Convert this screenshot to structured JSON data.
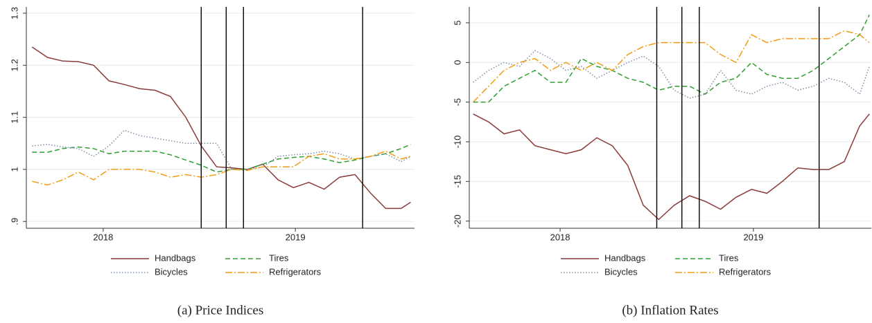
{
  "chart_data": [
    {
      "type": "line",
      "caption": "(a) Price Indices",
      "x": [
        2017.63,
        2017.71,
        2017.79,
        2017.87,
        2017.95,
        2018.03,
        2018.11,
        2018.19,
        2018.27,
        2018.35,
        2018.43,
        2018.51,
        2018.59,
        2018.67,
        2018.75,
        2018.83,
        2018.91,
        2018.99,
        2019.07,
        2019.15,
        2019.23,
        2019.31,
        2019.39,
        2019.47,
        2019.55,
        2019.6
      ],
      "xlim": [
        2017.6,
        2019.62
      ],
      "xticks": [
        2018,
        2019
      ],
      "ylim": [
        0.887,
        1.312
      ],
      "yticks": [
        {
          "value": 0.9,
          "label": ".9"
        },
        1,
        1.1,
        1.2,
        1.3
      ],
      "grid": true,
      "vlines": [
        2018.51,
        2018.64,
        2018.73,
        2019.35
      ],
      "series": [
        {
          "name": "Handbags",
          "color": "#8b3a3a",
          "style": "solid",
          "values": [
            1.235,
            1.215,
            1.208,
            1.207,
            1.2,
            1.17,
            1.163,
            1.155,
            1.152,
            1.14,
            1.1,
            1.045,
            1.005,
            1.003,
            1.0,
            1.01,
            0.98,
            0.965,
            0.975,
            0.962,
            0.985,
            0.99,
            0.955,
            0.925,
            0.925,
            0.937
          ]
        },
        {
          "name": "Tires",
          "color": "#2e9e2e",
          "style": "dashed",
          "values": [
            1.033,
            1.033,
            1.04,
            1.043,
            1.04,
            1.03,
            1.035,
            1.035,
            1.035,
            1.028,
            1.018,
            1.008,
            0.995,
            1.0,
            1.0,
            1.01,
            1.02,
            1.023,
            1.025,
            1.02,
            1.013,
            1.018,
            1.025,
            1.03,
            1.04,
            1.048
          ]
        },
        {
          "name": "Bicycles",
          "color": "#7a8ea6",
          "style": "dotted",
          "values": [
            1.045,
            1.048,
            1.043,
            1.04,
            1.025,
            1.045,
            1.075,
            1.065,
            1.06,
            1.055,
            1.05,
            1.05,
            1.05,
            1.0,
            1.0,
            1.005,
            1.025,
            1.028,
            1.03,
            1.035,
            1.03,
            1.02,
            1.025,
            1.03,
            1.015,
            1.025
          ]
        },
        {
          "name": "Refrigerators",
          "color": "#f39c12",
          "style": "dashdot",
          "values": [
            0.977,
            0.97,
            0.98,
            0.995,
            0.98,
            1.0,
            1.0,
            1.0,
            0.995,
            0.985,
            0.99,
            0.985,
            0.99,
            1.0,
            0.998,
            1.005,
            1.005,
            1.005,
            1.025,
            1.03,
            1.02,
            1.02,
            1.025,
            1.035,
            1.02,
            1.025
          ]
        }
      ]
    },
    {
      "type": "line",
      "caption": "(b) Inflation Rates",
      "x": [
        2017.55,
        2017.63,
        2017.71,
        2017.79,
        2017.87,
        2017.95,
        2018.03,
        2018.11,
        2018.19,
        2018.27,
        2018.35,
        2018.43,
        2018.51,
        2018.59,
        2018.67,
        2018.75,
        2018.83,
        2018.91,
        2018.99,
        2019.07,
        2019.15,
        2019.23,
        2019.31,
        2019.39,
        2019.47,
        2019.55,
        2019.6
      ],
      "xlim": [
        2017.53,
        2019.61
      ],
      "xticks": [
        2018,
        2019
      ],
      "ylim": [
        -20.9,
        7.0
      ],
      "yticks": [
        -20,
        -15,
        -10,
        -5,
        0,
        5
      ],
      "grid": true,
      "vlines": [
        2018.5,
        2018.63,
        2018.72,
        2019.34
      ],
      "series": [
        {
          "name": "Handbags",
          "color": "#8b3a3a",
          "style": "solid",
          "values": [
            -6.5,
            -7.5,
            -9,
            -8.5,
            -10.5,
            -11,
            -11.5,
            -11,
            -9.5,
            -10.5,
            -13,
            -18,
            -19.8,
            -18,
            -16.8,
            -17.5,
            -18.5,
            -17,
            -16,
            -16.5,
            -15,
            -13.3,
            -13.5,
            -13.5,
            -12.5,
            -8,
            -6.5
          ]
        },
        {
          "name": "Tires",
          "color": "#2e9e2e",
          "style": "dashed",
          "values": [
            -5,
            -5,
            -3,
            -2,
            -1,
            -2.5,
            -2.5,
            0.5,
            -0.5,
            -1,
            -2,
            -2.5,
            -3.5,
            -3,
            -3,
            -4,
            -2.5,
            -2,
            0,
            -1.5,
            -2,
            -2,
            -1,
            0.5,
            2,
            3.5,
            6
          ]
        },
        {
          "name": "Bicycles",
          "color": "#7a8ea6",
          "style": "dotted",
          "values": [
            -2.5,
            -1,
            0,
            -0.5,
            1.5,
            0.5,
            -1,
            -0.5,
            -2,
            -1,
            0,
            0.8,
            -0.5,
            -3.5,
            -4.5,
            -4,
            -1,
            -3.5,
            -4,
            -3,
            -2.5,
            -3.5,
            -3,
            -2,
            -2.5,
            -4,
            -0.5
          ]
        },
        {
          "name": "Refrigerators",
          "color": "#f39c12",
          "style": "dashdot",
          "values": [
            -5,
            -3,
            -1,
            0,
            0.5,
            -1,
            0,
            -1,
            0,
            -1,
            1,
            2,
            2.5,
            2.5,
            2.5,
            2.5,
            1,
            0,
            3.5,
            2.5,
            3,
            3,
            3,
            3,
            4,
            3.5,
            2.5
          ]
        }
      ]
    }
  ]
}
